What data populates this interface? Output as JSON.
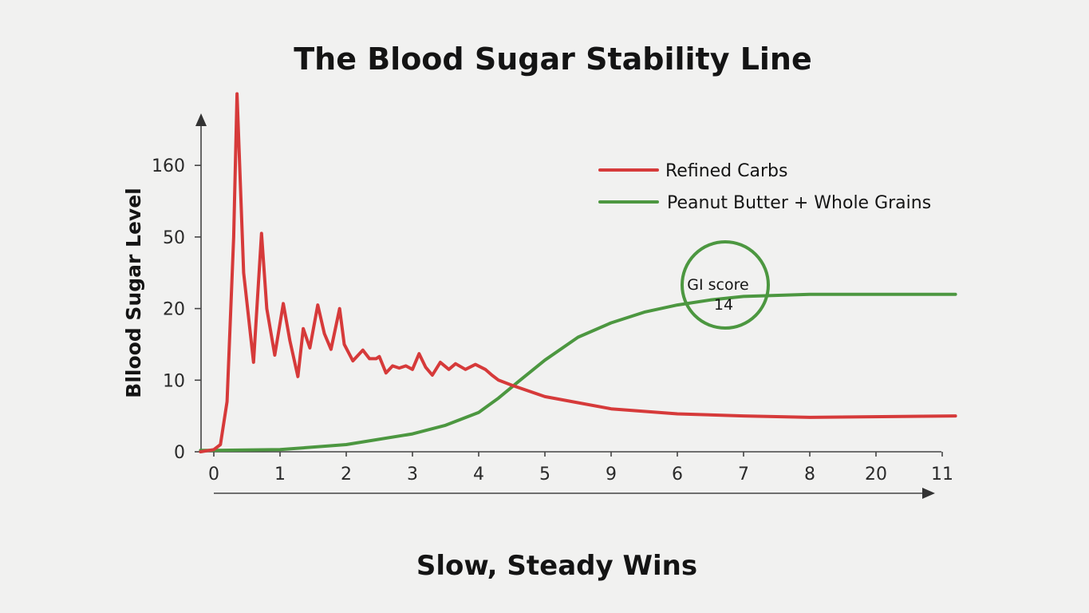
{
  "chart_data": {
    "type": "line",
    "title": "The Blood Sugar Stability Line",
    "xlabel": "Slow, Steady Wins",
    "ylabel": "Bllood Sugar Level",
    "x_tick_labels": [
      "0",
      "1",
      "2",
      "3",
      "4",
      "5",
      "9",
      "6",
      "7",
      "8",
      "20",
      "11"
    ],
    "y_tick_labels": [
      "0",
      "10",
      "20",
      "50",
      "160"
    ],
    "ylim_levels": [
      0,
      5
    ],
    "legend_position": "top-right",
    "grid": false,
    "series": [
      {
        "name": "Refined Carbs",
        "color": "#d63a3a",
        "note": "x as tick index (0-11), y as y-axis level index (0-4, between labels 0,10,20,50,160)",
        "points": [
          [
            -0.2,
            0.0
          ],
          [
            0.0,
            0.03
          ],
          [
            0.1,
            0.1
          ],
          [
            0.2,
            0.7
          ],
          [
            0.3,
            3.0
          ],
          [
            0.35,
            5.0
          ],
          [
            0.45,
            2.5
          ],
          [
            0.6,
            1.25
          ],
          [
            0.72,
            3.05
          ],
          [
            0.8,
            2.0
          ],
          [
            0.92,
            1.35
          ],
          [
            1.05,
            2.07
          ],
          [
            1.15,
            1.55
          ],
          [
            1.27,
            1.05
          ],
          [
            1.35,
            1.72
          ],
          [
            1.45,
            1.45
          ],
          [
            1.57,
            2.05
          ],
          [
            1.67,
            1.65
          ],
          [
            1.77,
            1.43
          ],
          [
            1.9,
            2.0
          ],
          [
            1.97,
            1.5
          ],
          [
            2.1,
            1.27
          ],
          [
            2.25,
            1.42
          ],
          [
            2.35,
            1.3
          ],
          [
            2.45,
            1.3
          ],
          [
            2.5,
            1.33
          ],
          [
            2.6,
            1.1
          ],
          [
            2.7,
            1.2
          ],
          [
            2.8,
            1.17
          ],
          [
            2.9,
            1.2
          ],
          [
            3.0,
            1.15
          ],
          [
            3.1,
            1.37
          ],
          [
            3.2,
            1.18
          ],
          [
            3.3,
            1.07
          ],
          [
            3.42,
            1.25
          ],
          [
            3.55,
            1.15
          ],
          [
            3.65,
            1.23
          ],
          [
            3.8,
            1.15
          ],
          [
            3.95,
            1.22
          ],
          [
            4.1,
            1.15
          ],
          [
            4.2,
            1.07
          ],
          [
            4.3,
            1.0
          ],
          [
            4.5,
            0.93
          ],
          [
            5.0,
            0.77
          ],
          [
            6.0,
            0.6
          ],
          [
            7.0,
            0.53
          ],
          [
            8.0,
            0.5
          ],
          [
            9.0,
            0.48
          ],
          [
            11.2,
            0.5
          ]
        ]
      },
      {
        "name": "Peanut Butter + Whole Grains",
        "color": "#4c9740",
        "note": "x as tick index (0-11), y as y-axis level index (0-4)",
        "points": [
          [
            -0.2,
            0.02
          ],
          [
            0.0,
            0.02
          ],
          [
            1.0,
            0.03
          ],
          [
            2.0,
            0.1
          ],
          [
            3.0,
            0.25
          ],
          [
            3.5,
            0.37
          ],
          [
            4.0,
            0.55
          ],
          [
            4.3,
            0.75
          ],
          [
            4.6,
            0.98
          ],
          [
            5.0,
            1.28
          ],
          [
            5.5,
            1.6
          ],
          [
            6.0,
            1.8
          ],
          [
            6.5,
            1.95
          ],
          [
            7.0,
            2.05
          ],
          [
            7.5,
            2.12
          ],
          [
            8.0,
            2.17
          ],
          [
            9.0,
            2.2
          ],
          [
            10.0,
            2.2
          ],
          [
            11.2,
            2.2
          ]
        ]
      }
    ],
    "annotations": [
      {
        "type": "circle",
        "label_line1": "GI score",
        "label_line2": "14",
        "color": "#4c9740",
        "at_x": 7.7,
        "at_y": 2.25
      }
    ]
  }
}
